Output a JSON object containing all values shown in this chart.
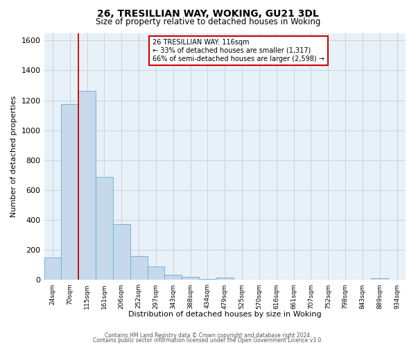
{
  "title": "26, TRESILLIAN WAY, WOKING, GU21 3DL",
  "subtitle": "Size of property relative to detached houses in Woking",
  "xlabel": "Distribution of detached houses by size in Woking",
  "ylabel": "Number of detached properties",
  "bar_color": "#c5d9ea",
  "bar_edge_color": "#6aaad4",
  "background_color": "#ffffff",
  "plot_bg_color": "#e8f0f8",
  "grid_color": "#c8d4e0",
  "vline_color": "#cc0000",
  "annotation_line1": "26 TRESILLIAN WAY: 116sqm",
  "annotation_line2": "← 33% of detached houses are smaller (1,317)",
  "annotation_line3": "66% of semi-detached houses are larger (2,598) →",
  "annotation_box_color": "#ffffff",
  "annotation_box_edge": "#cc0000",
  "bins": [
    "24sqm",
    "70sqm",
    "115sqm",
    "161sqm",
    "206sqm",
    "252sqm",
    "297sqm",
    "343sqm",
    "388sqm",
    "434sqm",
    "479sqm",
    "525sqm",
    "570sqm",
    "616sqm",
    "661sqm",
    "707sqm",
    "752sqm",
    "798sqm",
    "843sqm",
    "889sqm",
    "934sqm"
  ],
  "values": [
    150,
    1175,
    1265,
    690,
    375,
    160,
    90,
    35,
    22,
    5,
    15,
    0,
    0,
    0,
    0,
    0,
    0,
    0,
    0,
    12,
    0
  ],
  "ylim": [
    0,
    1650
  ],
  "yticks": [
    0,
    200,
    400,
    600,
    800,
    1000,
    1200,
    1400,
    1600
  ],
  "vline_bin_index": 1.5,
  "footer_line1": "Contains HM Land Registry data © Crown copyright and database right 2024.",
  "footer_line2": "Contains public sector information licensed under the Open Government Licence v3.0."
}
